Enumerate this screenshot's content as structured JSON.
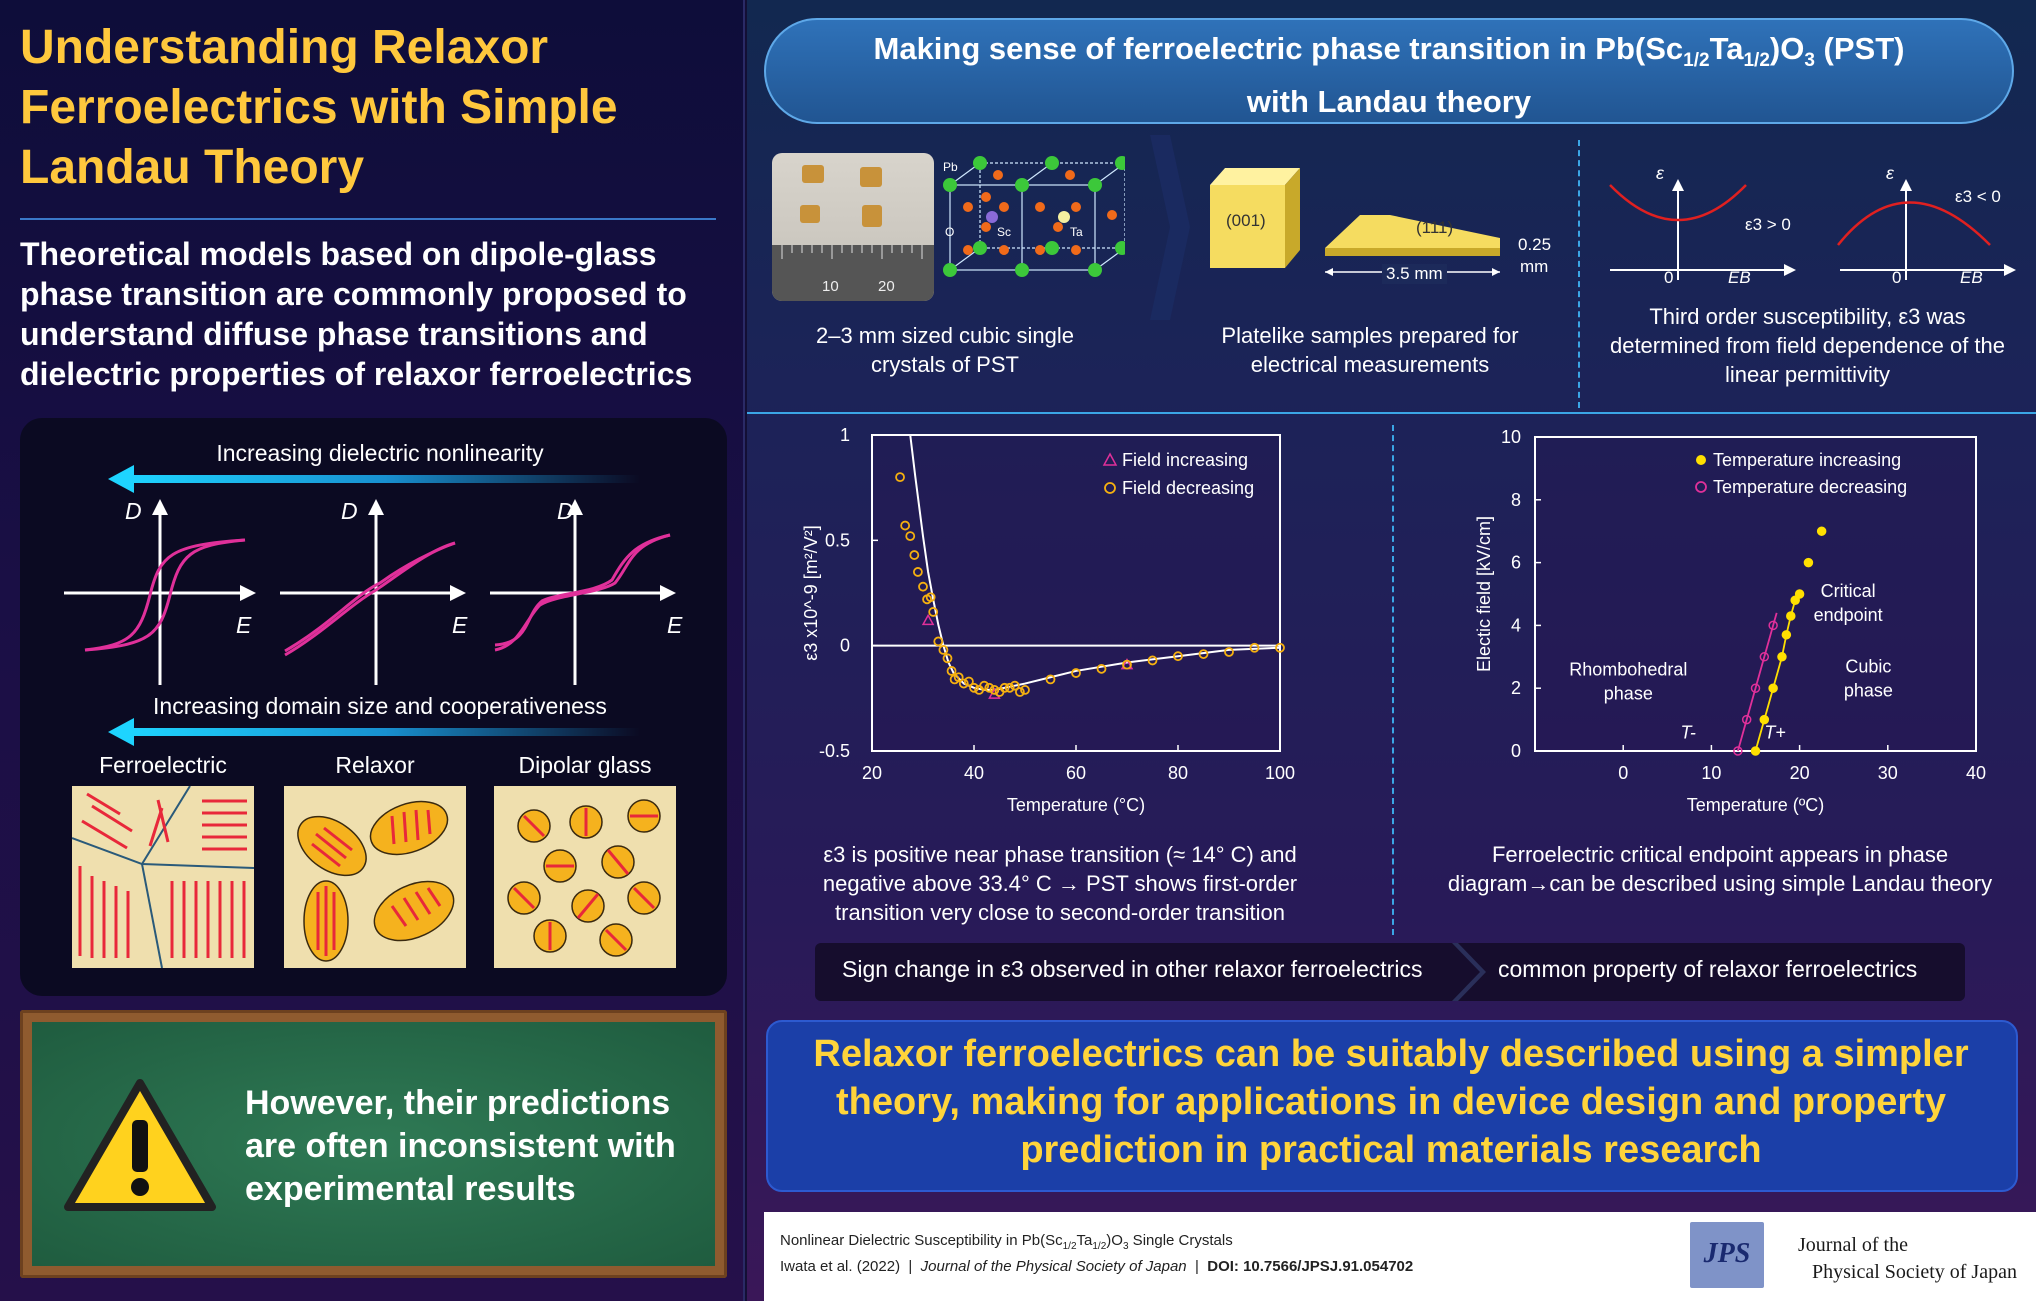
{
  "left": {
    "title": "Understanding Relaxor Ferroelectrics with Simple Landau Theory",
    "intro": "Theoretical models based on dipole-glass phase transition are commonly proposed to understand diffuse phase transitions and dielectric properties of relaxor ferroelectrics",
    "nonlinearity_label": "Increasing dielectric nonlinearity",
    "domain_label": "Increasing domain size and cooperativeness",
    "axis_d": "D",
    "axis_e": "E",
    "categories": [
      "Ferroelectric",
      "Relaxor",
      "Dipolar glass"
    ],
    "warning": "However, their predictions are often inconsistent with experimental results"
  },
  "top": {
    "title_part1": "Making sense of ferroelectric phase transition in Pb(Sc",
    "sub1": "1/2",
    "title_part2": "Ta",
    "sub2": "1/2",
    "title_part3": ")O",
    "sub3": "3",
    "title_part4": " (PST)",
    "title_line2": "with Landau theory"
  },
  "crystals": {
    "caption": "2–3 mm sized cubic single crystals of PST",
    "ruler_10": "10",
    "ruler_20": "20",
    "atom_pb": "Pb",
    "atom_o": "O",
    "atom_sc": "Sc",
    "atom_ta": "Ta"
  },
  "platelike": {
    "caption": "Platelike samples prepared for electrical measurements",
    "face_001": "(001)",
    "face_111": "(111)",
    "length": "3.5 mm",
    "thickness": "0.25",
    "thickness_unit": "mm"
  },
  "susceptibility": {
    "caption": "Third order susceptibility, ε3 was determined from field dependence of the linear permittivity",
    "eps_label": "ε",
    "pos_label": "ε3 > 0",
    "neg_label": "ε3 < 0",
    "zero": "0",
    "eb": "EB"
  },
  "chart_data": [
    {
      "type": "scatter",
      "xlabel": "Temperature (°C)",
      "ylabel": "ε3 x10^-9 [m²/V²]",
      "xlim": [
        20,
        100
      ],
      "ylim": [
        -0.5,
        1
      ],
      "xticks": [
        "20",
        "40",
        "60",
        "80",
        "100"
      ],
      "yticks": [
        "1",
        "0.5",
        "0",
        "-0.5"
      ],
      "legend_position": "top-right",
      "series": [
        {
          "name": "Field increasing",
          "color": "#e0309a",
          "marker": "triangle",
          "x": [
            31,
            44,
            70
          ],
          "y": [
            0.12,
            -0.23,
            -0.09
          ]
        },
        {
          "name": "Field decreasing",
          "color": "#f5b010",
          "marker": "circle",
          "x": [
            25.5,
            26.5,
            27.5,
            28.3,
            29,
            30,
            30.8,
            31.5,
            32,
            33,
            34,
            34.8,
            35.6,
            36.2,
            37,
            38,
            39,
            40,
            41,
            42,
            43,
            44,
            45,
            46,
            47,
            48,
            49,
            50,
            55,
            60,
            65,
            70,
            75,
            80,
            85,
            90,
            95,
            100
          ],
          "y": [
            0.8,
            0.57,
            0.52,
            0.43,
            0.35,
            0.28,
            0.22,
            0.23,
            0.16,
            0.02,
            -0.02,
            -0.06,
            -0.12,
            -0.16,
            -0.15,
            -0.18,
            -0.17,
            -0.2,
            -0.21,
            -0.19,
            -0.2,
            -0.21,
            -0.22,
            -0.2,
            -0.2,
            -0.19,
            -0.22,
            -0.21,
            -0.16,
            -0.13,
            -0.11,
            -0.09,
            -0.07,
            -0.05,
            -0.04,
            -0.03,
            -0.01,
            -0.01
          ]
        }
      ],
      "fit": {
        "color": "#ffffff",
        "x": [
          27.5,
          28.5,
          30,
          31,
          32,
          33,
          34,
          35,
          36,
          38,
          40,
          42,
          44,
          46,
          48,
          50,
          55,
          60,
          70,
          80,
          90,
          100
        ],
        "y": [
          1.0,
          0.8,
          0.52,
          0.35,
          0.22,
          0.1,
          0.0,
          -0.08,
          -0.13,
          -0.18,
          -0.2,
          -0.21,
          -0.21,
          -0.2,
          -0.19,
          -0.18,
          -0.15,
          -0.12,
          -0.08,
          -0.05,
          -0.02,
          -0.01
        ]
      },
      "caption": "ε3 is positive near phase transition (≈ 14° C) and negative above 33.4° C → PST shows first-order transition very close to second-order transition"
    },
    {
      "type": "scatter",
      "xlabel": "Temperature (ºC)",
      "ylabel": "Electic field [kV/cm]",
      "xlim": [
        -10,
        40
      ],
      "ylim": [
        0,
        10
      ],
      "xticks": [
        "0",
        "10",
        "20",
        "30",
        "40"
      ],
      "yticks": [
        "10",
        "8",
        "6",
        "4",
        "2",
        "0"
      ],
      "legend_position": "top-right",
      "series": [
        {
          "name": "Temperature increasing",
          "color": "#ffe000",
          "marker": "filled-circle",
          "x": [
            15,
            16,
            17,
            18,
            18.5,
            19,
            19.5,
            20,
            21,
            22.5
          ],
          "y": [
            0,
            1,
            2,
            3,
            3.7,
            4.3,
            4.8,
            5.0,
            6.0,
            7.0
          ]
        },
        {
          "name": "Temperature decreasing",
          "color": "#e0309a",
          "marker": "circle",
          "x": [
            13,
            14,
            15,
            16,
            17
          ],
          "y": [
            0,
            1,
            2,
            3,
            4
          ]
        }
      ],
      "labels": {
        "rhombohedral": "Rhombohedral phase",
        "cubic": "Cubic phase",
        "critical": "Critical endpoint",
        "t_minus": "T-",
        "t_plus": "T+"
      },
      "caption": "Ferroelectric critical endpoint appears in phase diagram→can be described using simple Landau theory"
    }
  ],
  "sign_bar": {
    "left": "Sign change in ε3 observed in other relaxor ferroelectrics",
    "right": "common property of relaxor ferroelectrics"
  },
  "conclusion": "Relaxor ferroelectrics can be suitably described using a simpler theory, making for applications in device design and property prediction in practical materials research",
  "footer": {
    "title_part1": "Nonlinear Dielectric Susceptibility in Pb(Sc",
    "sub1": "1/2",
    "title_part2": "Ta",
    "sub2": "1/2",
    "title_part3": ")O",
    "sub3": "3",
    "title_part4": " Single Crystals",
    "authors": "Iwata et al. (2022)",
    "journal": "Journal of the Physical Society of Japan",
    "doi": "DOI: 10.7566/JPSJ.91.054702",
    "logo": "JPS",
    "journal_name_line1": "Journal of the",
    "journal_name_line2": "Physical Society of Japan"
  },
  "colors": {
    "accent_yellow": "#ffc83d",
    "magenta": "#e0309a",
    "cyan": "#1ed4ff",
    "blue_box": "#1b3fa8"
  }
}
